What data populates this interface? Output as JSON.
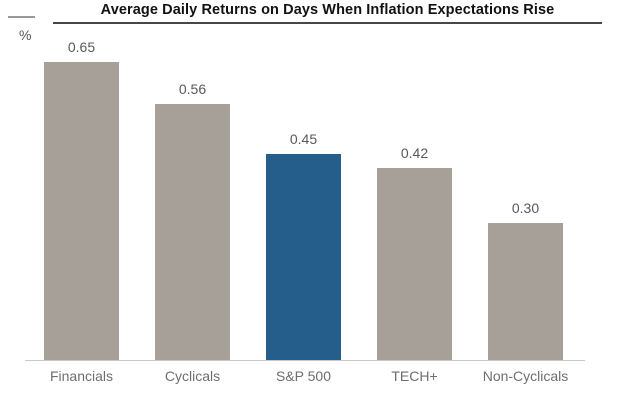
{
  "header": {
    "title": "Average Daily Returns on Days When Inflation Expectations Rise",
    "unit_label": "%"
  },
  "chart_data": {
    "type": "bar",
    "title": "Average Daily Returns on Days When Inflation Expectations Rise",
    "categories": [
      "Financials",
      "Cyclicals",
      "S&P 500",
      "TECH+",
      "Non-Cyclicals"
    ],
    "values": [
      0.65,
      0.56,
      0.45,
      0.42,
      0.3
    ],
    "xlabel": "",
    "ylabel": "%",
    "ylim": [
      0,
      0.7
    ],
    "grid": false,
    "legend": false,
    "value_labels_shown": true,
    "colors": {
      "default_bar": "#a7a099",
      "highlight_bar": "#265e8b",
      "highlight_category": "S&P 500",
      "value_label_text": "#595959",
      "category_label_text": "#6e6e6e",
      "title_text": "#121212",
      "axis_line": "#c9c9c9"
    },
    "bar_colors": [
      "#a7a099",
      "#a7a099",
      "#265e8b",
      "#a7a099",
      "#a7a099"
    ]
  }
}
